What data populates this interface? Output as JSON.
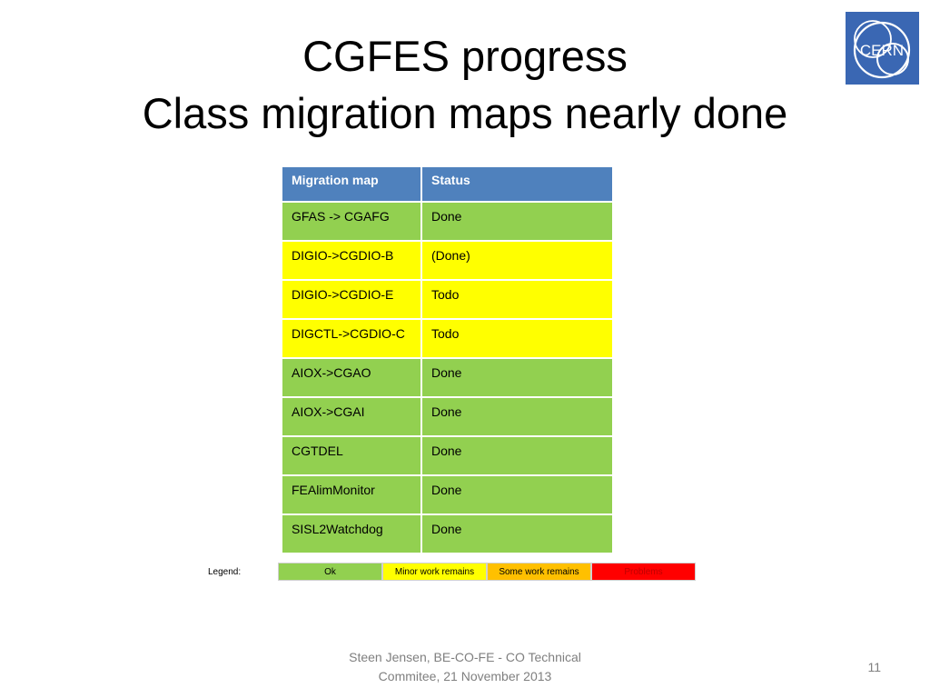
{
  "slide": {
    "title_line1": "CGFES progress",
    "title_line2": "Class migration maps nearly done",
    "logo_text": "CERN"
  },
  "table": {
    "headers": [
      "Migration map",
      "Status"
    ],
    "header_color": "#4f81bd",
    "rows": [
      {
        "map": "GFAS -> CGAFG",
        "status": "Done",
        "color": "#92d050"
      },
      {
        "map": "DIGIO->CGDIO-B",
        "status": "(Done)",
        "color": "#ffff00"
      },
      {
        "map": "DIGIO->CGDIO-E",
        "status": "Todo",
        "color": "#ffff00"
      },
      {
        "map": "DIGCTL->CGDIO-C",
        "status": "Todo",
        "color": "#ffff00"
      },
      {
        "map": "AIOX->CGAO",
        "status": "Done",
        "color": "#92d050"
      },
      {
        "map": "AIOX->CGAI",
        "status": "Done",
        "color": "#92d050"
      },
      {
        "map": "CGTDEL",
        "status": "Done",
        "color": "#92d050"
      },
      {
        "map": "FEAlimMonitor",
        "status": "Done",
        "color": "#92d050"
      },
      {
        "map": "SISL2Watchdog",
        "status": "Done",
        "color": "#92d050"
      }
    ]
  },
  "legend": {
    "label": "Legend:",
    "items": [
      {
        "text": "Ok",
        "color": "#92d050",
        "text_color": "#000000"
      },
      {
        "text": "Minor work remains",
        "color": "#ffff00",
        "text_color": "#000000"
      },
      {
        "text": "Some work remains",
        "color": "#ffc000",
        "text_color": "#000000"
      },
      {
        "text": "Problems",
        "color": "#ff0000",
        "text_color": "#c00000"
      }
    ]
  },
  "footer": {
    "line1": "Steen Jensen, BE-CO-FE - CO Technical",
    "line2": "Commitee, 21 November 2013",
    "page_number": "11"
  }
}
